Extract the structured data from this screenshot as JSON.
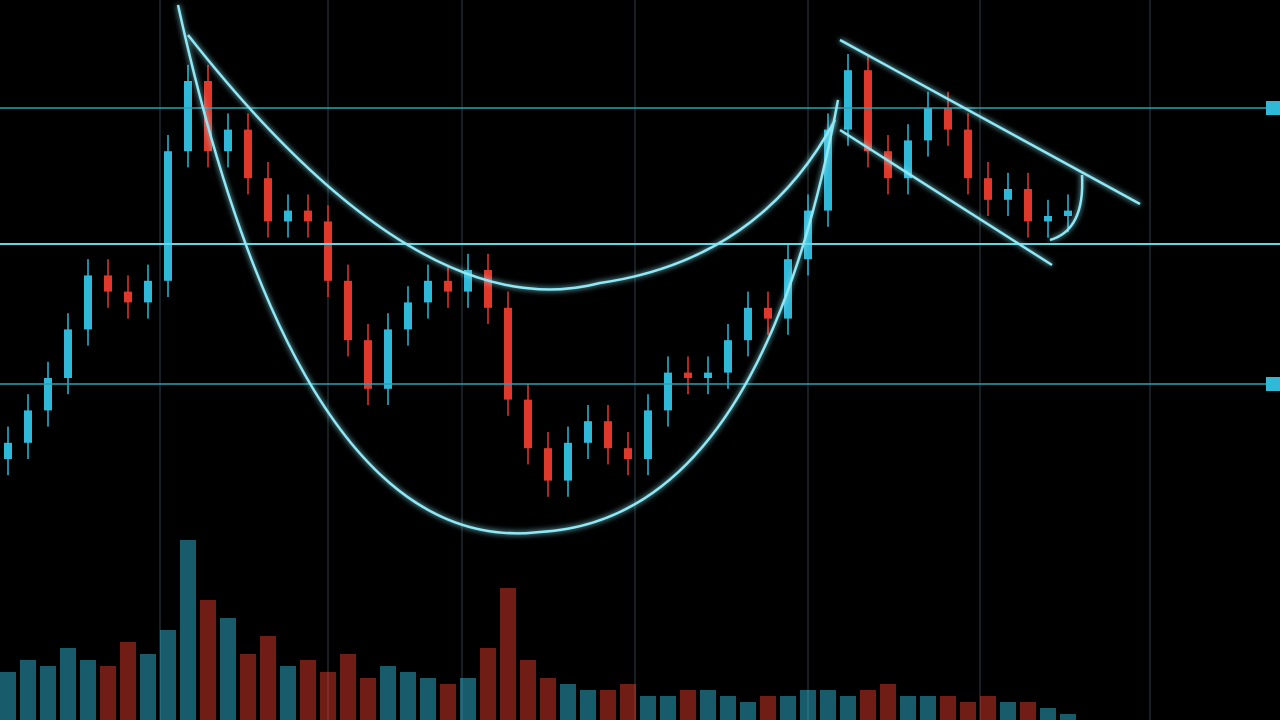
{
  "chart_data": {
    "type": "candlestick",
    "open": [
      15,
      18,
      24,
      30,
      39,
      49,
      46,
      44,
      48,
      72,
      85,
      72,
      76,
      67,
      59,
      61,
      59,
      48,
      37,
      28,
      39,
      44,
      48,
      46,
      50,
      43,
      26,
      17,
      11,
      18,
      22,
      17,
      15,
      24,
      31,
      30,
      31,
      37,
      43,
      41,
      52,
      61,
      76,
      87,
      72,
      67,
      74,
      80,
      76,
      67,
      63,
      65,
      59,
      60
    ],
    "high": [
      21,
      27,
      33,
      42,
      52,
      52,
      49,
      51,
      75,
      88,
      88,
      79,
      79,
      70,
      64,
      64,
      62,
      51,
      40,
      42,
      47,
      51,
      51,
      53,
      53,
      46,
      29,
      20,
      21,
      25,
      25,
      20,
      27,
      34,
      34,
      34,
      40,
      46,
      46,
      55,
      64,
      79,
      90,
      90,
      75,
      77,
      83,
      83,
      79,
      70,
      68,
      68,
      63,
      64
    ],
    "low": [
      12,
      15,
      21,
      27,
      36,
      43,
      41,
      41,
      45,
      69,
      69,
      69,
      64,
      56,
      56,
      56,
      45,
      34,
      25,
      25,
      36,
      41,
      43,
      43,
      40,
      23,
      14,
      8,
      8,
      15,
      14,
      12,
      12,
      21,
      27,
      27,
      28,
      34,
      38,
      38,
      49,
      58,
      73,
      69,
      64,
      64,
      71,
      73,
      64,
      60,
      60,
      56,
      56,
      57
    ],
    "close": [
      18,
      24,
      30,
      39,
      49,
      46,
      44,
      48,
      72,
      85,
      72,
      76,
      67,
      59,
      61,
      59,
      48,
      37,
      28,
      39,
      44,
      48,
      46,
      50,
      43,
      26,
      17,
      11,
      18,
      22,
      17,
      15,
      24,
      31,
      30,
      31,
      37,
      43,
      41,
      52,
      61,
      76,
      87,
      72,
      67,
      74,
      80,
      76,
      67,
      63,
      65,
      59,
      60,
      61
    ],
    "volume": [
      8,
      10,
      9,
      12,
      10,
      9,
      13,
      11,
      15,
      30,
      20,
      17,
      11,
      14,
      9,
      10,
      8,
      11,
      7,
      9,
      8,
      7,
      6,
      7,
      12,
      22,
      10,
      7,
      6,
      5,
      5,
      6,
      4,
      4,
      5,
      5,
      4,
      3,
      4,
      4,
      5,
      5,
      4,
      5,
      6,
      4,
      4,
      4,
      3,
      4,
      3,
      3,
      2,
      1
    ],
    "up_color": "#2fb8d8",
    "down_color": "#e0392b",
    "grid": true
  }
}
